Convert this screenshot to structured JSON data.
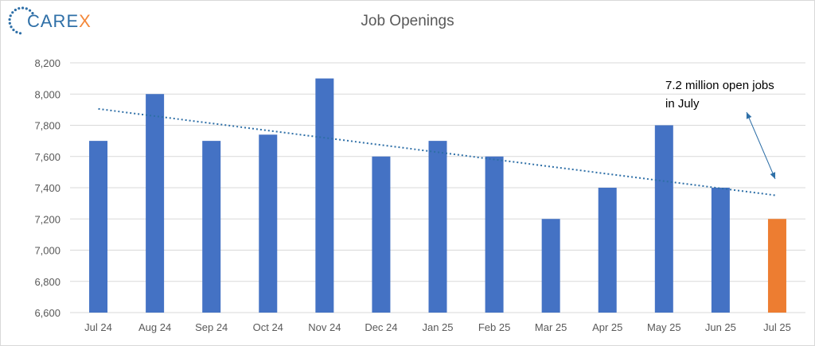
{
  "logo": {
    "text_main": "CARE",
    "text_accent": "X",
    "dot_color": "#2e6fa7",
    "accent_color": "#f4883a"
  },
  "chart_data": {
    "type": "bar",
    "title": "Job Openings",
    "categories": [
      "Jul 24",
      "Aug 24",
      "Sep 24",
      "Oct 24",
      "Nov 24",
      "Dec 24",
      "Jan 25",
      "Feb 25",
      "Mar 25",
      "Apr 25",
      "May 25",
      "Jun 25",
      "Jul 25"
    ],
    "values": [
      7700,
      8000,
      7700,
      7740,
      8100,
      7600,
      7700,
      7600,
      7200,
      7400,
      7800,
      7400,
      7200
    ],
    "colors": [
      "#4472c4",
      "#4472c4",
      "#4472c4",
      "#4472c4",
      "#4472c4",
      "#4472c4",
      "#4472c4",
      "#4472c4",
      "#4472c4",
      "#4472c4",
      "#4472c4",
      "#4472c4",
      "#ed7d31"
    ],
    "ylim": [
      6600,
      8200
    ],
    "yticks": [
      6600,
      6800,
      7000,
      7200,
      7400,
      7600,
      7800,
      8000,
      8200
    ],
    "ytick_labels": [
      "6,600",
      "6,800",
      "7,000",
      "7,200",
      "7,400",
      "7,600",
      "7,800",
      "8,000",
      "8,200"
    ],
    "grid": true,
    "trendline": {
      "style": "dotted",
      "color": "#2e6fa7",
      "start": 7905,
      "end": 7350
    },
    "annotation": {
      "lines": [
        "7.2 million open jobs",
        "in July"
      ],
      "points_to": "Jul 25"
    }
  }
}
